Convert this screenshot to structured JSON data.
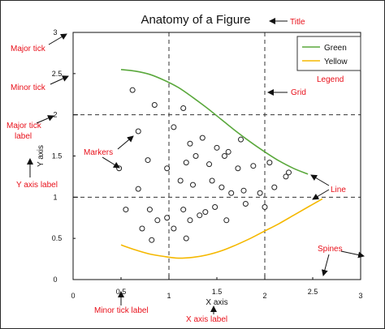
{
  "chart_data": {
    "type": "line",
    "title": "Anatomy of a Figure",
    "xlabel": "X axis",
    "ylabel": "Y axis",
    "xlim": [
      0,
      3
    ],
    "ylim": [
      0,
      3
    ],
    "major_ticks": [
      "0",
      "1",
      "2",
      "3"
    ],
    "minor_ticks_x": [
      "0.5",
      "1.5",
      "2.5"
    ],
    "minor_ticks_y": [
      "0.5",
      "1.5",
      "2.5"
    ],
    "grid": true,
    "legend_position": "top-right",
    "series": [
      {
        "name": "Green",
        "color": "#5aa83c",
        "x": [
          0.5,
          0.65,
          0.8,
          0.95,
          1.1,
          1.25,
          1.4,
          1.55,
          1.7,
          1.85,
          2.0,
          2.15,
          2.3,
          2.45
        ],
        "y": [
          2.55,
          2.53,
          2.49,
          2.42,
          2.33,
          2.21,
          2.08,
          1.94,
          1.8,
          1.67,
          1.55,
          1.44,
          1.35,
          1.28
        ]
      },
      {
        "name": "Yellow",
        "color": "#f5b800",
        "x": [
          0.5,
          0.65,
          0.8,
          0.95,
          1.1,
          1.25,
          1.4,
          1.55,
          1.7,
          1.85,
          2.0,
          2.15,
          2.3,
          2.45,
          2.6
        ],
        "y": [
          0.42,
          0.36,
          0.31,
          0.28,
          0.26,
          0.27,
          0.3,
          0.35,
          0.42,
          0.5,
          0.59,
          0.68,
          0.78,
          0.88,
          0.98
        ]
      }
    ],
    "markers": {
      "style": "open-circle",
      "x": [
        0.62,
        0.85,
        1.15,
        0.68,
        1.05,
        1.22,
        1.35,
        1.5,
        1.62,
        1.75,
        0.48,
        0.78,
        0.98,
        1.18,
        1.28,
        1.42,
        1.58,
        1.72,
        1.88,
        2.05,
        2.25,
        0.68,
        1.12,
        1.25,
        1.45,
        1.55,
        1.65,
        1.78,
        1.95,
        2.1,
        2.22,
        0.55,
        0.8,
        0.98,
        1.15,
        1.32,
        1.48,
        1.6,
        1.8,
        2.0,
        0.72,
        0.88,
        1.05,
        1.22,
        1.38,
        1.18,
        0.82
      ],
      "y": [
        2.3,
        2.12,
        2.08,
        1.8,
        1.85,
        1.65,
        1.72,
        1.6,
        1.55,
        1.7,
        1.35,
        1.45,
        1.35,
        1.42,
        1.5,
        1.4,
        1.5,
        1.35,
        1.38,
        1.42,
        1.3,
        1.1,
        1.2,
        1.15,
        1.2,
        1.12,
        1.05,
        1.08,
        1.05,
        1.12,
        1.25,
        0.85,
        0.85,
        0.75,
        0.85,
        0.78,
        0.88,
        0.72,
        0.92,
        0.88,
        0.62,
        0.72,
        0.62,
        0.72,
        0.82,
        0.5,
        0.48
      ]
    },
    "annotations": [
      "Title",
      "Major tick",
      "Minor tick",
      "Legend",
      "Grid",
      "Major tick label",
      "Markers",
      "Y axis label",
      "Line",
      "Spines",
      "Minor tick label",
      "X axis label"
    ]
  }
}
